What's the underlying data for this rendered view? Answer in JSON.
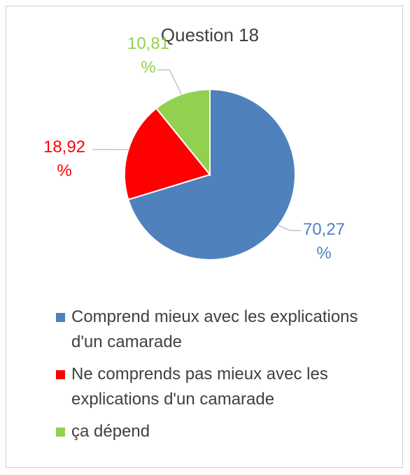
{
  "chart_data": {
    "type": "pie",
    "title": "Question 18",
    "categories": [
      "Comprend mieux avec les explications d'un camarade",
      "Ne comprends pas mieux avec les explications d'un camarade",
      "ça dépend"
    ],
    "values": [
      70.27,
      18.92,
      10.81
    ],
    "value_labels": [
      "70,27 %",
      "18,92 %",
      "10,81 %"
    ],
    "colors": [
      "#4f81bd",
      "#ff0000",
      "#92d050"
    ],
    "legend": "bottom"
  }
}
